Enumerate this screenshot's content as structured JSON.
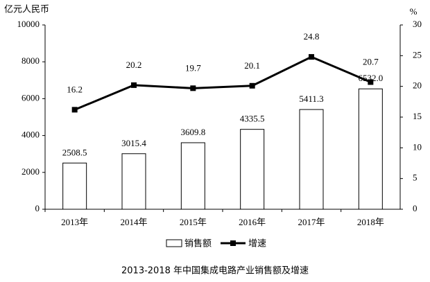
{
  "chart_data": {
    "type": "bar",
    "title": "2013-2018 年中国集成电路产业销售额及增速",
    "y_label": "亿元人民币",
    "y2_label": "%",
    "categories": [
      "2013年",
      "2014年",
      "2015年",
      "2016年",
      "2017年",
      "2018年"
    ],
    "series": [
      {
        "name": "销售额",
        "type": "bar",
        "color": "#ffffff",
        "values": [
          2508.5,
          3015.4,
          3609.8,
          4335.5,
          5411.3,
          6532.0
        ],
        "value_labels": [
          "2508.5",
          "3015.4",
          "3609.8",
          "4335.5",
          "5411.3",
          "6532.0"
        ]
      },
      {
        "name": "增速",
        "type": "line",
        "axis": "y2",
        "color": "#000000",
        "values": [
          16.2,
          20.2,
          19.7,
          20.1,
          24.8,
          20.7
        ]
      }
    ],
    "ylim": [
      0,
      10000
    ],
    "yticks": [
      0,
      2000,
      4000,
      6000,
      8000,
      10000
    ],
    "y2lim": [
      0,
      30
    ],
    "y2ticks": [
      0,
      5,
      10,
      15,
      20,
      25,
      30
    ]
  }
}
